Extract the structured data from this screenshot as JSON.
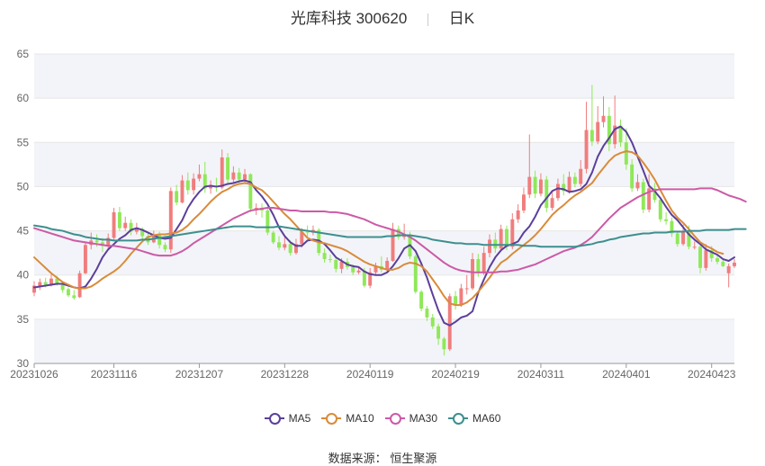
{
  "header": {
    "stock": "光库科技 300620",
    "period": "日K"
  },
  "source": {
    "label": "数据来源：",
    "name": "恒生聚源"
  },
  "legend": [
    {
      "name": "MA5",
      "color": "#5b3f9a"
    },
    {
      "name": "MA10",
      "color": "#d98b3a"
    },
    {
      "name": "MA30",
      "color": "#cc5aa6"
    },
    {
      "name": "MA60",
      "color": "#3d8f8f"
    }
  ],
  "colors": {
    "up": "#f07d7d",
    "down": "#8fe858",
    "grid": "#e6e6e6",
    "band": "#f3f4f9",
    "axis_text": "#666666"
  },
  "chart_data": {
    "type": "candlestick",
    "ylim": [
      30,
      65
    ],
    "yticks": [
      30,
      35,
      40,
      45,
      50,
      55,
      60,
      65
    ],
    "xtick_labels": [
      "20231026",
      "20231116",
      "20231207",
      "20231228",
      "20240119",
      "20240219",
      "20240311",
      "20240401",
      "20240423"
    ],
    "xtick_index": [
      0,
      14,
      29,
      44,
      59,
      74,
      89,
      104,
      119
    ],
    "grid": true,
    "legend_position": "bottom",
    "candles": [
      [
        38.0,
        38.8,
        37.6,
        39.3
      ],
      [
        38.7,
        39.2,
        38.3,
        39.6
      ],
      [
        39.2,
        38.9,
        38.6,
        39.7
      ],
      [
        38.9,
        39.6,
        38.7,
        40.1
      ],
      [
        39.6,
        39.0,
        38.8,
        39.9
      ],
      [
        39.0,
        38.3,
        38.0,
        39.3
      ],
      [
        38.4,
        37.7,
        37.5,
        38.6
      ],
      [
        37.7,
        37.4,
        37.2,
        38.3
      ],
      [
        37.5,
        40.2,
        37.4,
        40.5
      ],
      [
        40.2,
        43.4,
        40.1,
        43.8
      ],
      [
        43.4,
        43.9,
        42.9,
        44.8
      ],
      [
        43.9,
        43.7,
        43.2,
        44.6
      ],
      [
        43.7,
        43.3,
        42.6,
        44.2
      ],
      [
        43.3,
        44.2,
        42.9,
        44.7
      ],
      [
        44.2,
        47.1,
        44.0,
        47.6
      ],
      [
        47.1,
        45.3,
        45.0,
        47.7
      ],
      [
        45.3,
        45.9,
        45.0,
        46.6
      ],
      [
        45.9,
        44.9,
        44.5,
        46.3
      ],
      [
        44.9,
        45.2,
        44.6,
        45.9
      ],
      [
        45.2,
        44.4,
        44.1,
        45.4
      ],
      [
        44.4,
        43.7,
        43.4,
        44.8
      ],
      [
        43.7,
        44.5,
        43.6,
        45.0
      ],
      [
        44.5,
        43.4,
        43.0,
        44.9
      ],
      [
        43.4,
        42.9,
        42.6,
        43.7
      ],
      [
        42.9,
        49.5,
        42.5,
        49.9
      ],
      [
        49.5,
        48.2,
        47.9,
        50.2
      ],
      [
        48.2,
        50.7,
        48.1,
        51.3
      ],
      [
        50.7,
        49.6,
        49.1,
        51.6
      ],
      [
        49.6,
        50.9,
        49.1,
        51.5
      ],
      [
        50.9,
        51.4,
        50.6,
        52.5
      ],
      [
        51.4,
        49.8,
        49.3,
        52.8
      ],
      [
        49.8,
        50.0,
        49.2,
        50.7
      ],
      [
        50.0,
        49.9,
        49.4,
        51.0
      ],
      [
        49.9,
        53.3,
        49.7,
        54.2
      ],
      [
        53.3,
        50.8,
        50.4,
        53.8
      ],
      [
        50.8,
        51.6,
        50.5,
        52.3
      ],
      [
        51.6,
        50.8,
        50.2,
        52.1
      ],
      [
        50.8,
        51.4,
        50.5,
        52.0
      ],
      [
        51.4,
        47.5,
        47.1,
        51.5
      ],
      [
        47.5,
        47.6,
        46.8,
        48.1
      ],
      [
        47.6,
        47.3,
        46.5,
        48.1
      ],
      [
        47.3,
        44.8,
        44.5,
        47.6
      ],
      [
        44.8,
        43.7,
        43.5,
        45.0
      ],
      [
        43.7,
        43.1,
        42.8,
        44.4
      ],
      [
        43.1,
        43.5,
        42.8,
        44.3
      ],
      [
        43.5,
        42.5,
        42.2,
        43.9
      ],
      [
        42.5,
        43.5,
        42.3,
        44.1
      ],
      [
        43.5,
        44.9,
        43.1,
        45.3
      ],
      [
        44.9,
        44.8,
        44.3,
        45.6
      ],
      [
        44.8,
        45.1,
        44.5,
        45.6
      ],
      [
        45.1,
        42.5,
        42.2,
        45.3
      ],
      [
        42.5,
        41.8,
        41.4,
        43.0
      ],
      [
        41.8,
        41.7,
        41.4,
        42.3
      ],
      [
        41.7,
        40.7,
        40.3,
        42.0
      ],
      [
        40.7,
        41.5,
        40.2,
        41.9
      ],
      [
        41.5,
        40.9,
        40.6,
        41.9
      ],
      [
        40.9,
        40.3,
        40.0,
        41.2
      ],
      [
        40.3,
        40.5,
        40.1,
        40.9
      ],
      [
        40.5,
        38.8,
        38.6,
        40.8
      ],
      [
        38.8,
        40.3,
        38.5,
        40.8
      ],
      [
        40.3,
        41.0,
        40.0,
        41.4
      ],
      [
        41.0,
        40.6,
        40.3,
        42.1
      ],
      [
        40.6,
        41.6,
        40.4,
        42.0
      ],
      [
        41.6,
        45.2,
        41.5,
        45.9
      ],
      [
        45.2,
        44.3,
        44.0,
        45.6
      ],
      [
        44.3,
        44.6,
        44.0,
        45.8
      ],
      [
        44.6,
        42.1,
        41.8,
        44.9
      ],
      [
        42.1,
        38.1,
        37.9,
        42.3
      ],
      [
        38.1,
        36.2,
        35.9,
        38.3
      ],
      [
        36.2,
        35.2,
        34.8,
        36.5
      ],
      [
        35.2,
        34.2,
        33.9,
        35.6
      ],
      [
        34.2,
        32.8,
        32.1,
        34.5
      ],
      [
        32.8,
        31.6,
        30.9,
        33.0
      ],
      [
        31.6,
        37.6,
        31.4,
        37.9
      ],
      [
        37.6,
        36.6,
        36.1,
        38.2
      ],
      [
        36.6,
        38.5,
        36.4,
        39.0
      ],
      [
        38.5,
        38.5,
        37.8,
        40.0
      ],
      [
        38.5,
        41.8,
        38.3,
        42.5
      ],
      [
        41.8,
        40.2,
        39.8,
        42.4
      ],
      [
        40.2,
        42.5,
        40.0,
        43.2
      ],
      [
        42.5,
        44.0,
        42.0,
        44.6
      ],
      [
        44.0,
        43.0,
        42.5,
        44.8
      ],
      [
        43.0,
        45.2,
        42.7,
        45.7
      ],
      [
        45.2,
        43.2,
        42.8,
        45.6
      ],
      [
        43.2,
        46.3,
        42.9,
        47.0
      ],
      [
        46.3,
        47.3,
        45.9,
        48.0
      ],
      [
        47.3,
        49.1,
        47.0,
        49.9
      ],
      [
        49.1,
        51.1,
        48.7,
        55.9
      ],
      [
        51.1,
        49.2,
        48.7,
        51.8
      ],
      [
        49.2,
        50.8,
        48.9,
        51.5
      ],
      [
        50.8,
        47.6,
        47.1,
        51.2
      ],
      [
        47.6,
        48.7,
        47.3,
        49.4
      ],
      [
        48.7,
        50.3,
        48.4,
        50.9
      ],
      [
        50.3,
        49.5,
        49.0,
        51.4
      ],
      [
        49.5,
        51.1,
        49.2,
        51.7
      ],
      [
        51.1,
        50.3,
        49.9,
        51.6
      ],
      [
        50.3,
        52.0,
        50.0,
        53.0
      ],
      [
        52.0,
        56.4,
        51.5,
        59.6
      ],
      [
        56.4,
        55.1,
        54.6,
        61.5
      ],
      [
        55.1,
        57.3,
        54.8,
        59.1
      ],
      [
        57.3,
        58.0,
        56.7,
        60.2
      ],
      [
        58.0,
        54.8,
        54.0,
        59.0
      ],
      [
        54.8,
        56.9,
        54.3,
        60.3
      ],
      [
        56.9,
        55.0,
        54.5,
        57.6
      ],
      [
        55.0,
        52.5,
        51.9,
        56.6
      ],
      [
        52.5,
        49.8,
        49.4,
        53.1
      ],
      [
        49.8,
        50.5,
        49.5,
        51.4
      ],
      [
        50.5,
        47.4,
        47.0,
        50.9
      ],
      [
        47.4,
        49.8,
        47.1,
        51.4
      ],
      [
        49.8,
        48.5,
        48.2,
        50.4
      ],
      [
        48.5,
        46.3,
        46.0,
        48.8
      ],
      [
        46.3,
        46.1,
        45.7,
        47.1
      ],
      [
        46.1,
        44.7,
        44.3,
        46.5
      ],
      [
        44.7,
        43.5,
        43.2,
        45.0
      ],
      [
        43.5,
        45.0,
        43.3,
        45.7
      ],
      [
        45.0,
        43.2,
        42.9,
        45.6
      ],
      [
        43.2,
        43.2,
        42.9,
        43.8
      ],
      [
        43.2,
        40.8,
        40.2,
        43.4
      ],
      [
        40.8,
        42.8,
        40.5,
        43.5
      ],
      [
        42.8,
        41.9,
        41.5,
        43.3
      ],
      [
        41.9,
        41.5,
        41.2,
        42.4
      ],
      [
        41.5,
        41.0,
        40.9,
        41.8
      ],
      [
        40.2,
        41.0,
        38.6,
        41.3
      ],
      [
        41.0,
        41.4,
        40.8,
        41.8
      ]
    ],
    "series": [
      {
        "name": "MA5",
        "values": [
          38.6,
          38.7,
          38.8,
          38.9,
          39.0,
          39.0,
          38.8,
          38.6,
          38.5,
          38.7,
          39.6,
          40.7,
          42.0,
          42.9,
          43.5,
          44.1,
          44.5,
          45.1,
          45.3,
          45.1,
          44.8,
          44.5,
          44.2,
          44.1,
          44.2,
          45.2,
          46.2,
          47.6,
          48.6,
          49.4,
          50.0,
          50.1,
          50.0,
          50.1,
          50.3,
          50.4,
          50.6,
          50.7,
          50.5,
          49.6,
          48.9,
          48.0,
          46.8,
          45.4,
          44.4,
          43.7,
          43.3,
          43.3,
          43.9,
          44.0,
          43.9,
          43.5,
          42.8,
          42.0,
          41.6,
          41.2,
          41.0,
          40.9,
          40.4,
          40.1,
          40.0,
          40.0,
          40.3,
          41.0,
          41.9,
          43.0,
          43.4,
          42.7,
          41.3,
          39.7,
          37.8,
          36.0,
          34.6,
          34.3,
          34.7,
          35.2,
          35.4,
          35.9,
          38.0,
          39.5,
          40.9,
          42.0,
          42.8,
          43.3,
          43.5,
          43.8,
          44.8,
          45.5,
          46.6,
          47.9,
          48.7,
          49.5,
          49.8,
          49.7,
          49.4,
          49.5,
          49.7,
          50.3,
          51.6,
          53.4,
          54.6,
          55.5,
          56.5,
          56.8,
          56.2,
          55.0,
          53.4,
          51.8,
          50.1,
          49.5,
          48.7,
          47.7,
          46.8,
          46.2,
          45.4,
          44.6,
          44.0,
          43.5,
          42.9,
          42.6,
          42.3,
          41.8,
          41.6,
          42.0
        ]
      },
      {
        "name": "MA10",
        "values": [
          42.0,
          41.4,
          40.8,
          40.2,
          39.7,
          39.2,
          38.9,
          38.6,
          38.5,
          38.5,
          38.7,
          39.1,
          39.6,
          40.0,
          40.4,
          40.9,
          41.6,
          42.4,
          43.1,
          43.8,
          44.3,
          44.5,
          44.6,
          44.6,
          44.7,
          44.8,
          45.1,
          45.6,
          46.3,
          46.9,
          47.6,
          48.3,
          48.9,
          49.4,
          49.7,
          50.1,
          50.3,
          50.4,
          50.3,
          49.9,
          49.6,
          49.0,
          48.3,
          47.6,
          46.9,
          46.3,
          45.6,
          44.9,
          44.2,
          43.9,
          43.7,
          43.6,
          43.4,
          43.2,
          43.0,
          42.7,
          42.3,
          41.9,
          41.5,
          41.2,
          41.0,
          40.8,
          40.6,
          40.6,
          40.8,
          41.2,
          41.4,
          41.3,
          41.0,
          40.4,
          39.5,
          38.6,
          37.6,
          36.8,
          36.6,
          36.6,
          36.9,
          37.4,
          38.1,
          38.9,
          39.7,
          40.6,
          41.4,
          41.8,
          42.4,
          42.9,
          43.4,
          43.9,
          44.5,
          45.2,
          46.0,
          46.8,
          47.4,
          47.9,
          48.5,
          49.0,
          49.4,
          49.9,
          50.4,
          51.3,
          52.1,
          52.9,
          53.5,
          53.8,
          54.0,
          53.9,
          53.5,
          52.7,
          51.8,
          50.8,
          49.6,
          48.4,
          47.3,
          46.5,
          45.9,
          45.2,
          44.4,
          43.7,
          43.3,
          43.0,
          42.6,
          42.4
        ]
      },
      {
        "name": "MA30",
        "values": [
          45.3,
          45.1,
          44.9,
          44.7,
          44.5,
          44.3,
          44.1,
          43.9,
          43.8,
          43.7,
          43.6,
          43.5,
          43.4,
          43.3,
          43.3,
          43.2,
          43.1,
          43.0,
          42.9,
          42.7,
          42.5,
          42.3,
          42.2,
          42.2,
          42.2,
          42.4,
          42.7,
          43.1,
          43.6,
          44.0,
          44.4,
          44.8,
          45.2,
          45.6,
          46.0,
          46.4,
          46.7,
          47.0,
          47.3,
          47.4,
          47.5,
          47.6,
          47.6,
          47.5,
          47.4,
          47.3,
          47.3,
          47.2,
          47.2,
          47.2,
          47.2,
          47.2,
          47.1,
          47.1,
          47.0,
          46.9,
          46.7,
          46.5,
          46.3,
          46.0,
          45.7,
          45.5,
          45.3,
          45.1,
          44.9,
          44.6,
          44.3,
          43.9,
          43.4,
          42.9,
          42.4,
          41.9,
          41.4,
          41.0,
          40.7,
          40.5,
          40.4,
          40.3,
          40.3,
          40.3,
          40.3,
          40.3,
          40.4,
          40.4,
          40.5,
          40.6,
          40.8,
          41.0,
          41.2,
          41.5,
          41.8,
          42.1,
          42.4,
          42.7,
          42.9,
          43.1,
          43.4,
          43.8,
          44.3,
          45.0,
          45.7,
          46.4,
          47.0,
          47.6,
          48.0,
          48.4,
          48.8,
          49.1,
          49.4,
          49.6,
          49.7,
          49.7,
          49.7,
          49.7,
          49.7,
          49.7,
          49.7,
          49.8,
          49.8,
          49.8,
          49.6,
          49.3,
          49.0,
          48.8,
          48.6,
          48.3
        ]
      },
      {
        "name": "MA60",
        "values": [
          45.6,
          45.5,
          45.4,
          45.2,
          45.1,
          45.0,
          44.8,
          44.6,
          44.5,
          44.3,
          44.2,
          44.1,
          44.0,
          44.0,
          43.9,
          43.9,
          43.9,
          43.9,
          43.9,
          44.0,
          44.0,
          44.1,
          44.2,
          44.3,
          44.4,
          44.5,
          44.6,
          44.7,
          44.8,
          44.9,
          45.0,
          45.1,
          45.2,
          45.3,
          45.4,
          45.5,
          45.5,
          45.5,
          45.5,
          45.4,
          45.4,
          45.4,
          45.4,
          45.5,
          45.4,
          45.3,
          45.2,
          45.1,
          45.0,
          44.9,
          44.8,
          44.7,
          44.6,
          44.5,
          44.4,
          44.3,
          44.3,
          44.3,
          44.3,
          44.3,
          44.3,
          44.3,
          44.4,
          44.4,
          44.5,
          44.5,
          44.5,
          44.4,
          44.3,
          44.2,
          44.0,
          43.9,
          43.8,
          43.7,
          43.6,
          43.6,
          43.5,
          43.5,
          43.5,
          43.4,
          43.4,
          43.4,
          43.4,
          43.4,
          43.4,
          43.4,
          43.3,
          43.3,
          43.3,
          43.2,
          43.2,
          43.2,
          43.2,
          43.2,
          43.2,
          43.2,
          43.3,
          43.4,
          43.5,
          43.7,
          43.8,
          44.0,
          44.1,
          44.3,
          44.4,
          44.5,
          44.6,
          44.7,
          44.7,
          44.8,
          44.8,
          44.8,
          44.9,
          44.9,
          44.9,
          45.0,
          45.0,
          45.0,
          45.1,
          45.1,
          45.1,
          45.1,
          45.1,
          45.2,
          45.2,
          45.2
        ]
      }
    ]
  }
}
